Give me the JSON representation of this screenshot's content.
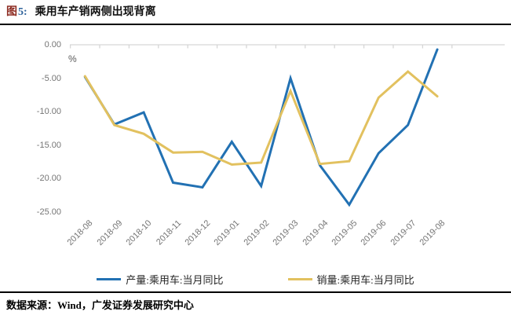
{
  "caption": {
    "figure_label": "图",
    "figure_number": "5:",
    "title": "乘用车产销两侧出现背离"
  },
  "footer": {
    "source_text": "数据来源：Wind，广发证券发展研究中心"
  },
  "colors": {
    "caption_label": "#8D2B21",
    "caption_number": "#2F639B",
    "production_line": "#2271B3",
    "sales_line": "#E2C15F",
    "axis_line": "#D6D6D6",
    "tick_label": "#757575"
  },
  "chart_data": {
    "type": "line",
    "title": "乘用车产销两侧出现背离",
    "unit_label": "%",
    "categories": [
      "2018-08",
      "2018-09",
      "2018-10",
      "2018-11",
      "2018-12",
      "2019-01",
      "2019-02",
      "2019-03",
      "2019-04",
      "2019-05",
      "2019-06",
      "2019-07",
      "2019-08"
    ],
    "series": [
      {
        "name": "产量:乘用车:当月同比",
        "color": "#2271B3",
        "values": [
          -4.8,
          -11.9,
          -10.1,
          -20.6,
          -21.3,
          -14.5,
          -21.1,
          -5.0,
          -18.0,
          -23.9,
          -16.2,
          -12.0,
          -0.7
        ]
      },
      {
        "name": "销量:乘用车:当月同比",
        "color": "#E2C15F",
        "values": [
          -4.7,
          -12.0,
          -13.3,
          -16.1,
          -16.0,
          -17.9,
          -17.6,
          -6.9,
          -17.8,
          -17.4,
          -7.9,
          -4.0,
          -7.7
        ]
      }
    ],
    "y_ticks": [
      "0.00",
      "-5.00",
      "-10.00",
      "-15.00",
      "-20.00",
      "-25.00"
    ],
    "ylim": [
      -25,
      0
    ],
    "grid": false,
    "legend_position": "bottom"
  }
}
